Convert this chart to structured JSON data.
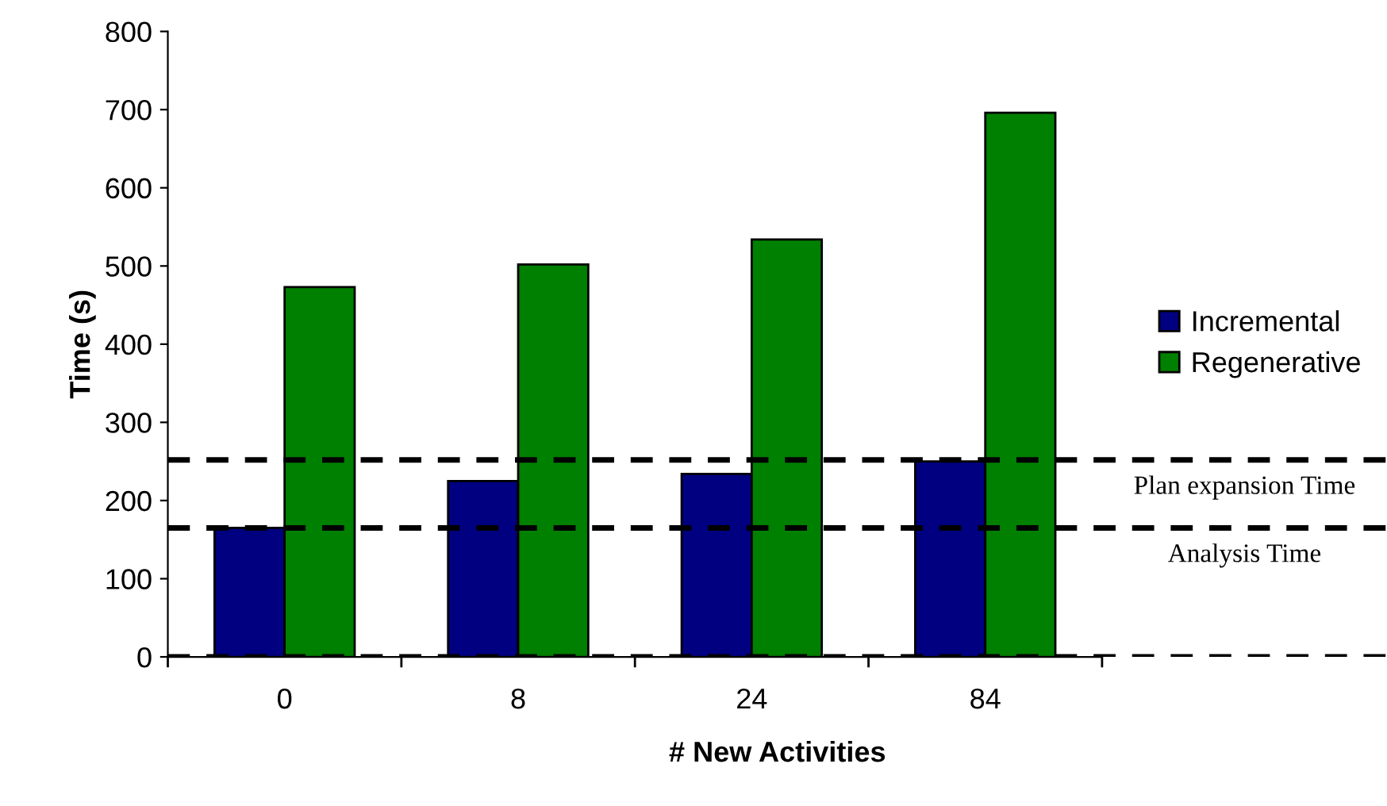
{
  "chart_data": {
    "type": "bar",
    "xlabel": "# New Activities",
    "ylabel": "Time (s)",
    "categories": [
      "0",
      "8",
      "24",
      "84"
    ],
    "series": [
      {
        "name": "Incremental",
        "color": "#000080",
        "values": [
          165,
          225,
          234,
          250
        ]
      },
      {
        "name": "Regenerative",
        "color": "#008000",
        "values": [
          473,
          502,
          534,
          696
        ]
      }
    ],
    "ylim": [
      0,
      800
    ],
    "yticks": [
      0,
      100,
      200,
      300,
      400,
      500,
      600,
      700,
      800
    ],
    "ref_lines": [
      {
        "axis": "y",
        "value": 252,
        "label": "Plan expansion Time",
        "color": "#000000",
        "line_style": "dashed"
      },
      {
        "axis": "y",
        "value": 165,
        "label": "Analysis Time",
        "color": "#000000",
        "line_style": "dashed"
      },
      {
        "axis": "y",
        "value": 0,
        "color": "#000000",
        "line_style": "dashed"
      }
    ],
    "legend": "right",
    "grid": false
  }
}
